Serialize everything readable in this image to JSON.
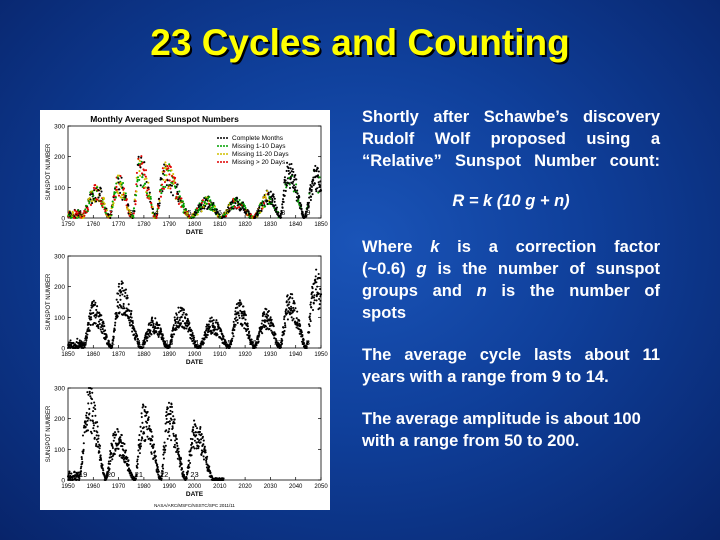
{
  "slide": {
    "title": "23 Cycles and Counting",
    "para1_lines": [
      "Shortly after Schawbe’s discovery",
      "Rudolf Wolf proposed using a",
      "“Relative” Sunspot Number count:"
    ],
    "formula": "R = k (10 g + n)",
    "para2": {
      "l1a": "Where ",
      "l1b": "k",
      "l1c": " is a correction factor",
      "l2a": "(~0.6) ",
      "l2b": "g",
      "l2c": " is the number of sunspot",
      "l3a": "groups and ",
      "l3b": "n",
      "l3c": " is the number of",
      "l4": "spots"
    },
    "para3_lines": [
      "The average cycle lasts about 11",
      "years with a range from 9 to 14."
    ],
    "para4_lines": [
      "The average amplitude is about 100",
      "with a range from 50 to 200."
    ]
  },
  "chart_data": [
    {
      "type": "scatter",
      "title": "Monthly Averaged Sunspot Numbers",
      "xlabel": "DATE",
      "ylabel": "SUNSPOT NUMBER",
      "xlim": [
        1750,
        1850
      ],
      "ylim": [
        0,
        300
      ],
      "xticks": [
        "1750",
        "1760",
        "1770",
        "1780",
        "1790",
        "1800",
        "1810",
        "1820",
        "1830",
        "1840",
        "1850"
      ],
      "yticks": [
        "0",
        "100",
        "200",
        "300"
      ],
      "legend": {
        "placement": "top-right",
        "entries": [
          {
            "name": "Complete Months",
            "color": "#000000"
          },
          {
            "name": "Missing 1-10 Days",
            "color": "#00a000"
          },
          {
            "name": "Missing 11-20 Days",
            "color": "#d0c000"
          },
          {
            "name": "Missing > 20 Days",
            "color": "#e00000"
          }
        ]
      },
      "cycle_labels": [
        {
          "label": "1",
          "x": 1755
        },
        {
          "label": "2",
          "x": 1767
        },
        {
          "label": "3",
          "x": 1775
        },
        {
          "label": "4",
          "x": 1785
        },
        {
          "label": "5",
          "x": 1798
        },
        {
          "label": "6",
          "x": 1810
        },
        {
          "label": "7",
          "x": 1825
        },
        {
          "label": "8",
          "x": 1835
        },
        {
          "label": "9",
          "x": 1845
        }
      ],
      "cycles": [
        {
          "min": 1755.2,
          "max": 1761.5,
          "amp": 85
        },
        {
          "min": 1766.5,
          "max": 1769.7,
          "amp": 110
        },
        {
          "min": 1775.5,
          "max": 1778.4,
          "amp": 160
        },
        {
          "min": 1784.7,
          "max": 1788.1,
          "amp": 140
        },
        {
          "min": 1798.3,
          "max": 1805.2,
          "amp": 50
        },
        {
          "min": 1810.6,
          "max": 1816.4,
          "amp": 48
        },
        {
          "min": 1823.3,
          "max": 1829.9,
          "amp": 70
        },
        {
          "min": 1833.9,
          "max": 1837.2,
          "amp": 150
        },
        {
          "min": 1843.5,
          "max": 1848.1,
          "amp": 130
        }
      ]
    },
    {
      "type": "scatter",
      "xlabel": "DATE",
      "ylabel": "SUNSPOT NUMBER",
      "xlim": [
        1850,
        1950
      ],
      "ylim": [
        0,
        300
      ],
      "xticks": [
        "1850",
        "1860",
        "1870",
        "1880",
        "1890",
        "1900",
        "1910",
        "1920",
        "1930",
        "1940",
        "1950"
      ],
      "yticks": [
        "0",
        "100",
        "200",
        "300"
      ],
      "cycle_labels": [
        {
          "label": "10",
          "x": 1856
        },
        {
          "label": "11",
          "x": 1867
        },
        {
          "label": "12",
          "x": 1879
        },
        {
          "label": "13",
          "x": 1890
        },
        {
          "label": "14",
          "x": 1902
        },
        {
          "label": "15",
          "x": 1913
        },
        {
          "label": "16",
          "x": 1923
        },
        {
          "label": "17",
          "x": 1933
        },
        {
          "label": "18",
          "x": 1944
        }
      ],
      "cycles": [
        {
          "min": 1856.0,
          "max": 1860.1,
          "amp": 115
        },
        {
          "min": 1867.2,
          "max": 1870.6,
          "amp": 165
        },
        {
          "min": 1878.9,
          "max": 1883.9,
          "amp": 75
        },
        {
          "min": 1889.6,
          "max": 1894.1,
          "amp": 105
        },
        {
          "min": 1901.7,
          "max": 1907.0,
          "amp": 75
        },
        {
          "min": 1913.6,
          "max": 1917.6,
          "amp": 120
        },
        {
          "min": 1923.6,
          "max": 1928.4,
          "amp": 95
        },
        {
          "min": 1933.8,
          "max": 1937.4,
          "amp": 140
        },
        {
          "min": 1944.2,
          "max": 1947.5,
          "amp": 200
        }
      ]
    },
    {
      "type": "scatter",
      "xlabel": "DATE",
      "ylabel": "SUNSPOT NUMBER",
      "xlim": [
        1950,
        2050
      ],
      "ylim": [
        0,
        300
      ],
      "xticks": [
        "1950",
        "1960",
        "1970",
        "1980",
        "1990",
        "2000",
        "2010",
        "2020",
        "2030",
        "2040",
        "2050"
      ],
      "yticks": [
        "0",
        "100",
        "200",
        "300"
      ],
      "cycle_labels": [
        {
          "label": "19",
          "x": 1956
        },
        {
          "label": "20",
          "x": 1967
        },
        {
          "label": "21",
          "x": 1978
        },
        {
          "label": "22",
          "x": 1988
        },
        {
          "label": "23",
          "x": 2000
        }
      ],
      "cycles": [
        {
          "min": 1954.3,
          "max": 1958.2,
          "amp": 240
        },
        {
          "min": 1964.8,
          "max": 1968.9,
          "amp": 130
        },
        {
          "min": 1976.5,
          "max": 1979.9,
          "amp": 190
        },
        {
          "min": 1986.8,
          "max": 1989.6,
          "amp": 200
        },
        {
          "min": 1996.4,
          "max": 2000.3,
          "amp": 150
        }
      ],
      "data_end": 2011.5,
      "footer": "NASA/ARC/MSFC/NSSTC/SPC 2011/11"
    }
  ]
}
